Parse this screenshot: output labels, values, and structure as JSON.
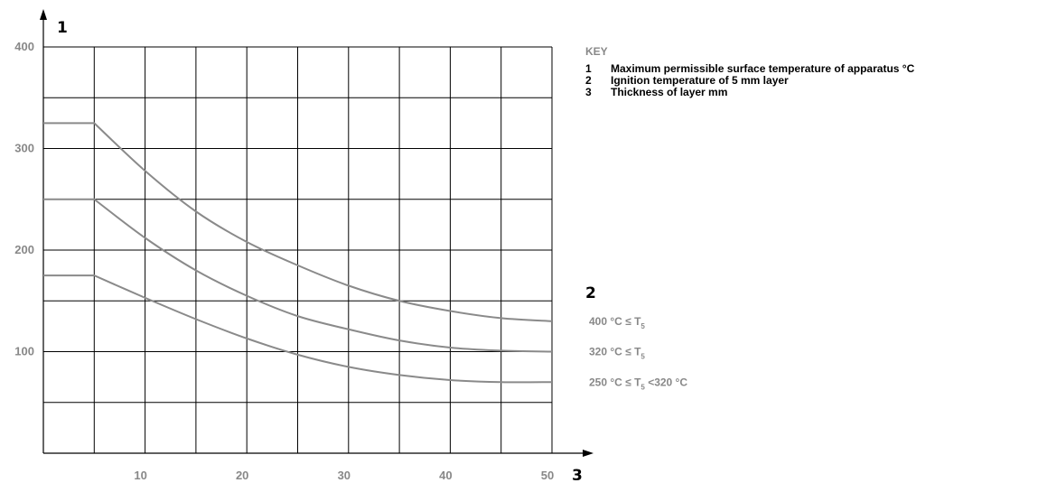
{
  "key": {
    "title": "KEY",
    "items": [
      {
        "num": "1",
        "text": "Maximum permissible surface temperature of apparatus °C"
      },
      {
        "num": "2",
        "text": "Ignition temperature of 5 mm layer"
      },
      {
        "num": "3",
        "text": "Thickness of layer mm"
      }
    ]
  },
  "colors": {
    "curve": "#8a8a8a",
    "grid": "#000000",
    "tick_text": "#888888"
  },
  "chart_data": {
    "type": "line",
    "y_axis_id": "1",
    "x_axis_id": "3",
    "legend_id": "2",
    "xlim": [
      0,
      50
    ],
    "ylim": [
      0,
      400
    ],
    "grid": true,
    "x_grid_step": 5,
    "y_grid_step": 50,
    "x_ticks": [
      10,
      20,
      30,
      40,
      50
    ],
    "y_ticks": [
      100,
      200,
      300,
      400
    ],
    "series": [
      {
        "name": "400 °C ≤ T5",
        "label": {
          "main": "400 °C ≤ T",
          "sub": "5",
          "tail": ""
        },
        "x": [
          0,
          5,
          10,
          15,
          20,
          25,
          30,
          35,
          40,
          45,
          50
        ],
        "y": [
          325,
          325,
          278,
          238,
          208,
          185,
          165,
          150,
          140,
          133,
          130
        ]
      },
      {
        "name": "320 °C ≤ T5",
        "label": {
          "main": "320 °C ≤ T",
          "sub": "5",
          "tail": ""
        },
        "x": [
          0,
          5,
          10,
          15,
          20,
          25,
          30,
          35,
          40,
          45,
          50
        ],
        "y": [
          250,
          250,
          212,
          180,
          155,
          135,
          122,
          111,
          104,
          101,
          100
        ]
      },
      {
        "name": "250 °C ≤ T5 <320 °C",
        "label": {
          "main": "250 °C ≤ T",
          "sub": "5",
          "tail": " <320 °C"
        },
        "x": [
          0,
          5,
          10,
          15,
          20,
          25,
          30,
          35,
          40,
          45,
          50
        ],
        "y": [
          175,
          175,
          153,
          132,
          113,
          97,
          85,
          77,
          72,
          70,
          70
        ]
      }
    ]
  }
}
